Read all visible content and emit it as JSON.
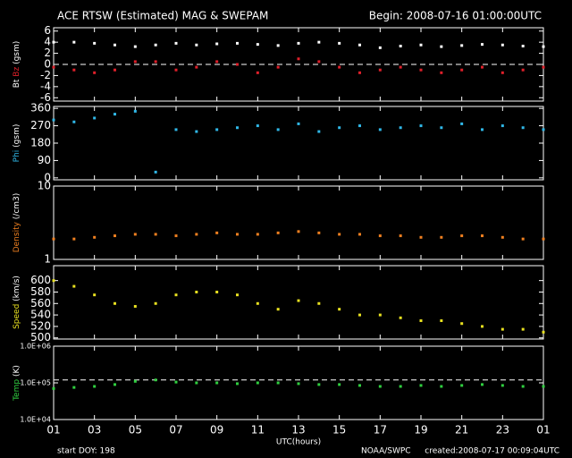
{
  "header": {
    "title": "ACE RTSW (Estimated) MAG & SWEPAM",
    "begin": "Begin: 2008-07-16 01:00:00UTC"
  },
  "x_axis": {
    "label": "UTC(hours)",
    "xlim": [
      0,
      24
    ],
    "xticks": [
      {
        "value": 0,
        "label": "01"
      },
      {
        "value": 2,
        "label": "03"
      },
      {
        "value": 4,
        "label": "05"
      },
      {
        "value": 6,
        "label": "07"
      },
      {
        "value": 8,
        "label": "09"
      },
      {
        "value": 10,
        "label": "11"
      },
      {
        "value": 12,
        "label": "13"
      },
      {
        "value": 14,
        "label": "15"
      },
      {
        "value": 16,
        "label": "17"
      },
      {
        "value": 18,
        "label": "19"
      },
      {
        "value": 20,
        "label": "21"
      },
      {
        "value": 22,
        "label": "23"
      },
      {
        "value": 24,
        "label": "01"
      }
    ]
  },
  "chart_data": [
    {
      "type": "scatter",
      "ylabel": "(gsm)",
      "ylim": [
        -6.6,
        6.6
      ],
      "yticks": [
        -6,
        -4,
        -2,
        0,
        2,
        4,
        6
      ],
      "reference": 0,
      "x": [
        0,
        1,
        2,
        3,
        4,
        5,
        6,
        7,
        8,
        9,
        10,
        11,
        12,
        13,
        14,
        15,
        16,
        17,
        18,
        19,
        20,
        21,
        22,
        23,
        24
      ],
      "series": [
        {
          "name": "Bt",
          "color": "#ffffff",
          "values": [
            4,
            4,
            3.8,
            3.5,
            3.2,
            3.5,
            3.8,
            3.5,
            3.7,
            3.8,
            3.6,
            3.4,
            3.8,
            4,
            3.8,
            3.5,
            3,
            3.3,
            3.5,
            3.2,
            3.4,
            3.6,
            3.5,
            3.3,
            3.2
          ]
        },
        {
          "name": "Bz",
          "color": "#e0202a",
          "values": [
            -0.5,
            -1,
            -1.5,
            -1,
            0.5,
            0.5,
            -1,
            -0.5,
            0.5,
            0,
            -1.5,
            -0.5,
            1,
            0.5,
            -0.5,
            -1.5,
            -1,
            -0.5,
            -1,
            -1.5,
            -1,
            -0.5,
            -1.5,
            -1,
            -0.5
          ]
        }
      ]
    },
    {
      "type": "scatter",
      "ylabel": "(gsm)",
      "ylim": [
        -10,
        370
      ],
      "yticks": [
        0,
        90,
        180,
        270,
        360
      ],
      "x": [
        0,
        1,
        2,
        3,
        4,
        5,
        6,
        7,
        8,
        9,
        10,
        11,
        12,
        13,
        14,
        15,
        16,
        17,
        18,
        19,
        20,
        21,
        22,
        23,
        24
      ],
      "series": [
        {
          "name": "Phi",
          "color": "#30b8e8",
          "values": [
            300,
            290,
            310,
            330,
            345,
            30,
            250,
            240,
            250,
            260,
            270,
            250,
            280,
            240,
            260,
            270,
            250,
            260,
            270,
            260,
            280,
            250,
            270,
            260,
            250
          ]
        }
      ]
    },
    {
      "type": "scatter",
      "ylabel": "(/cm3)",
      "log": true,
      "ylim": [
        1,
        10
      ],
      "yticks": [
        1,
        10
      ],
      "x": [
        0,
        1,
        2,
        3,
        4,
        5,
        6,
        7,
        8,
        9,
        10,
        11,
        12,
        13,
        14,
        15,
        16,
        17,
        18,
        19,
        20,
        21,
        22,
        23,
        24
      ],
      "series": [
        {
          "name": "Density",
          "color": "#f08020",
          "values": [
            1.9,
            1.9,
            2,
            2.1,
            2.2,
            2.2,
            2.1,
            2.2,
            2.3,
            2.2,
            2.2,
            2.3,
            2.4,
            2.3,
            2.2,
            2.2,
            2.1,
            2.1,
            2,
            2,
            2.1,
            2.1,
            2,
            1.9,
            1.9
          ]
        }
      ]
    },
    {
      "type": "scatter",
      "ylabel": "(km/s)",
      "ylim": [
        498,
        626
      ],
      "yticks": [
        500,
        520,
        540,
        560,
        580,
        600
      ],
      "x": [
        0,
        1,
        2,
        3,
        4,
        5,
        6,
        7,
        8,
        9,
        10,
        11,
        12,
        13,
        14,
        15,
        16,
        17,
        18,
        19,
        20,
        21,
        22,
        23,
        24
      ],
      "series": [
        {
          "name": "Speed",
          "color": "#e8e020",
          "values": [
            600,
            590,
            575,
            560,
            555,
            560,
            575,
            580,
            580,
            575,
            560,
            550,
            565,
            560,
            550,
            540,
            540,
            535,
            530,
            530,
            525,
            520,
            515,
            515,
            510
          ]
        }
      ]
    },
    {
      "type": "scatter",
      "ylabel": "(K)",
      "log": true,
      "ylim": [
        10000,
        1000000
      ],
      "reference": 120000,
      "yticks": [
        {
          "value": 10000,
          "label": "1.0E+04"
        },
        {
          "value": 100000,
          "label": "1.0E+05"
        },
        {
          "value": 1000000,
          "label": "1.0E+06"
        }
      ],
      "x": [
        0,
        1,
        2,
        3,
        4,
        5,
        6,
        7,
        8,
        9,
        10,
        11,
        12,
        13,
        14,
        15,
        16,
        17,
        18,
        19,
        20,
        21,
        22,
        23,
        24
      ],
      "series": [
        {
          "name": "Temp",
          "color": "#30d040",
          "values": [
            70000,
            75000,
            80000,
            90000,
            110000,
            120000,
            105000,
            100000,
            100000,
            95000,
            100000,
            100000,
            95000,
            90000,
            90000,
            85000,
            80000,
            80000,
            85000,
            80000,
            85000,
            90000,
            85000,
            80000,
            80000
          ]
        }
      ]
    }
  ],
  "footer": {
    "start": "start DOY: 198",
    "source": "NOAA/SWPC",
    "created": "created:2008-07-17 00:09:04UTC"
  }
}
